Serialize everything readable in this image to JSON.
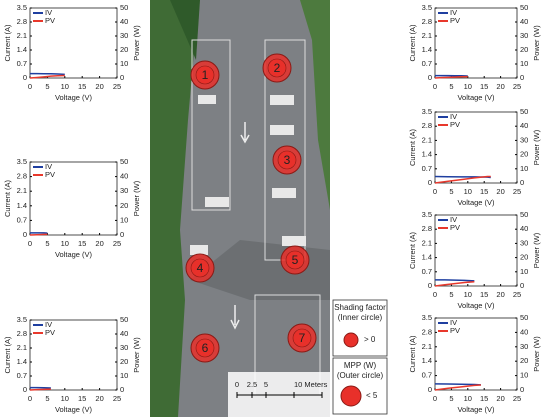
{
  "chart_data": [
    {
      "type": "line",
      "xlabel": "Voltage (V)",
      "ylabel": "Current (A)",
      "y2label": "Power (W)",
      "x": [
        0,
        2,
        4,
        6,
        8,
        10
      ],
      "series": [
        {
          "name": "IV",
          "color": "#1f3fa0",
          "values": [
            0.22,
            0.22,
            0.21,
            0.21,
            0.2,
            0.18
          ]
        },
        {
          "name": "PV",
          "color": "#e8382c",
          "axis": "y2",
          "values": [
            0,
            0.4,
            0.8,
            1.3,
            1.6,
            1.8
          ]
        }
      ],
      "xlim": [
        0,
        25
      ],
      "xticks": [
        0,
        5,
        10,
        15,
        20,
        25
      ],
      "ylim": [
        0,
        3.5
      ],
      "yticks": [
        0,
        0.7,
        1.4,
        2.1,
        2.8,
        3.5
      ],
      "y2lim": [
        0,
        50
      ],
      "y2ticks": [
        0,
        10,
        20,
        30,
        40,
        50
      ],
      "legend": "upper left"
    },
    {
      "type": "line",
      "xlabel": "Voltage (V)",
      "ylabel": "Current (A)",
      "y2label": "Power (W)",
      "x": [
        0,
        1,
        2,
        3,
        4,
        5
      ],
      "series": [
        {
          "name": "IV",
          "color": "#1f3fa0",
          "values": [
            0.1,
            0.1,
            0.1,
            0.1,
            0.1,
            0.09
          ]
        },
        {
          "name": "PV",
          "color": "#e8382c",
          "axis": "y2",
          "values": [
            0,
            0.1,
            0.2,
            0.3,
            0.4,
            0.45
          ]
        }
      ],
      "xlim": [
        0,
        25
      ],
      "xticks": [
        0,
        5,
        10,
        15,
        20,
        25
      ],
      "ylim": [
        0,
        3.5
      ],
      "yticks": [
        0,
        0.7,
        1.4,
        2.1,
        2.8,
        3.5
      ],
      "y2lim": [
        0,
        50
      ],
      "y2ticks": [
        0,
        10,
        20,
        30,
        40,
        50
      ],
      "legend": "upper left"
    },
    {
      "type": "line",
      "xlabel": "Voltage (V)",
      "ylabel": "Current (A)",
      "y2label": "Power (W)",
      "x": [
        0,
        2,
        4,
        6
      ],
      "series": [
        {
          "name": "IV",
          "color": "#1f3fa0",
          "values": [
            0.12,
            0.12,
            0.11,
            0.1
          ]
        },
        {
          "name": "PV",
          "color": "#e8382c",
          "axis": "y2",
          "values": [
            0,
            0.24,
            0.44,
            0.6
          ]
        }
      ],
      "xlim": [
        0,
        25
      ],
      "xticks": [
        0,
        5,
        10,
        15,
        20,
        25
      ],
      "ylim": [
        0,
        3.5
      ],
      "yticks": [
        0,
        0.7,
        1.4,
        2.1,
        2.8,
        3.5
      ],
      "y2lim": [
        0,
        50
      ],
      "y2ticks": [
        0,
        10,
        20,
        30,
        40,
        50
      ],
      "legend": "upper left"
    },
    {
      "type": "line",
      "xlabel": "Voltage (V)",
      "ylabel": "Current (A)",
      "y2label": "Power (W)",
      "x": [
        0,
        2,
        4,
        6,
        8,
        10
      ],
      "series": [
        {
          "name": "IV",
          "color": "#1f3fa0",
          "values": [
            0.12,
            0.12,
            0.12,
            0.11,
            0.11,
            0.1
          ]
        },
        {
          "name": "PV",
          "color": "#e8382c",
          "axis": "y2",
          "values": [
            0,
            0.24,
            0.48,
            0.66,
            0.88,
            1.0
          ]
        }
      ],
      "xlim": [
        0,
        25
      ],
      "xticks": [
        0,
        5,
        10,
        15,
        20,
        25
      ],
      "ylim": [
        0,
        3.5
      ],
      "yticks": [
        0,
        0.7,
        1.4,
        2.1,
        2.8,
        3.5
      ],
      "y2lim": [
        0,
        50
      ],
      "y2ticks": [
        0,
        10,
        20,
        30,
        40,
        50
      ],
      "legend": "upper left"
    },
    {
      "type": "line",
      "xlabel": "Voltage (V)",
      "ylabel": "Current (A)",
      "y2label": "Power (W)",
      "x": [
        0,
        4,
        8,
        12,
        16,
        17
      ],
      "series": [
        {
          "name": "IV",
          "color": "#1f3fa0",
          "values": [
            0.32,
            0.31,
            0.3,
            0.3,
            0.29,
            0.27
          ]
        },
        {
          "name": "PV",
          "color": "#e8382c",
          "axis": "y2",
          "values": [
            0,
            1.2,
            2.4,
            3.6,
            4.6,
            4.6
          ]
        }
      ],
      "xlim": [
        0,
        25
      ],
      "xticks": [
        0,
        5,
        10,
        15,
        20,
        25
      ],
      "ylim": [
        0,
        3.5
      ],
      "yticks": [
        0,
        0.7,
        1.4,
        2.1,
        2.8,
        3.5
      ],
      "y2lim": [
        0,
        50
      ],
      "y2ticks": [
        0,
        10,
        20,
        30,
        40,
        50
      ],
      "legend": "upper left"
    },
    {
      "type": "line",
      "xlabel": "Voltage (V)",
      "ylabel": "Current (A)",
      "y2label": "Power (W)",
      "x": [
        0,
        3,
        6,
        9,
        12
      ],
      "series": [
        {
          "name": "IV",
          "color": "#1f3fa0",
          "values": [
            0.3,
            0.3,
            0.29,
            0.28,
            0.25
          ]
        },
        {
          "name": "PV",
          "color": "#e8382c",
          "axis": "y2",
          "values": [
            0,
            0.9,
            1.7,
            2.5,
            3.0
          ]
        }
      ],
      "xlim": [
        0,
        25
      ],
      "xticks": [
        0,
        5,
        10,
        15,
        20,
        25
      ],
      "ylim": [
        0,
        3.5
      ],
      "yticks": [
        0,
        0.7,
        1.4,
        2.1,
        2.8,
        3.5
      ],
      "y2lim": [
        0,
        50
      ],
      "y2ticks": [
        0,
        10,
        20,
        30,
        40,
        50
      ],
      "legend": "upper left"
    },
    {
      "type": "line",
      "xlabel": "Voltage (V)",
      "ylabel": "Current (A)",
      "y2label": "Power (W)",
      "x": [
        0,
        4,
        8,
        12,
        14
      ],
      "series": [
        {
          "name": "IV",
          "color": "#1f3fa0",
          "values": [
            0.3,
            0.29,
            0.28,
            0.27,
            0.25
          ]
        },
        {
          "name": "PV",
          "color": "#e8382c",
          "axis": "y2",
          "values": [
            0,
            1.2,
            2.2,
            3.2,
            3.5
          ]
        }
      ],
      "xlim": [
        0,
        25
      ],
      "xticks": [
        0,
        5,
        10,
        15,
        20,
        25
      ],
      "ylim": [
        0,
        3.5
      ],
      "yticks": [
        0,
        0.7,
        1.4,
        2.1,
        2.8,
        3.5
      ],
      "y2lim": [
        0,
        50
      ],
      "y2ticks": [
        0,
        10,
        20,
        30,
        40,
        50
      ],
      "legend": "upper left"
    }
  ],
  "map": {
    "markers": [
      "1",
      "2",
      "3",
      "4",
      "5",
      "6",
      "7"
    ],
    "legend": {
      "shading_title": [
        "Shading factor",
        "(Inner circle)"
      ],
      "shading_value": "> 0",
      "mpp_title": [
        "MPP (W)",
        "(Outer circle)"
      ],
      "mpp_value": "< 5"
    },
    "scale_labels": [
      "0",
      "2.5",
      "5",
      "10 Meters"
    ]
  }
}
